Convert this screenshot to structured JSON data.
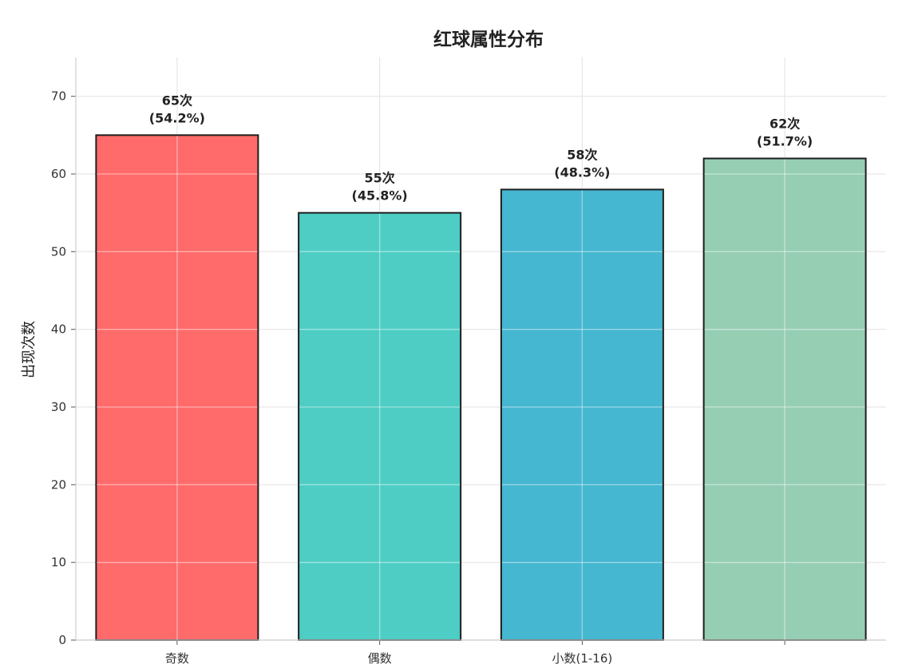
{
  "chart_data": {
    "type": "bar",
    "title": "红球属性分布",
    "xlabel": "",
    "ylabel": "出现次数",
    "categories": [
      "奇数",
      "偶数",
      "小数(1-16)",
      ""
    ],
    "values": [
      65,
      55,
      58,
      62
    ],
    "data_labels": [
      [
        "65次",
        "(54.2%)"
      ],
      [
        "55次",
        "(45.8%)"
      ],
      [
        "58次",
        "(48.3%)"
      ],
      [
        "62次",
        "(51.7%)"
      ]
    ],
    "colors": [
      "#ff6b6b",
      "#4ecdc4",
      "#45b7d1",
      "#96ceb4"
    ],
    "ylim": [
      0,
      75
    ],
    "yticks": [
      0,
      10,
      20,
      30,
      40,
      50,
      60,
      70
    ],
    "grid": true
  }
}
